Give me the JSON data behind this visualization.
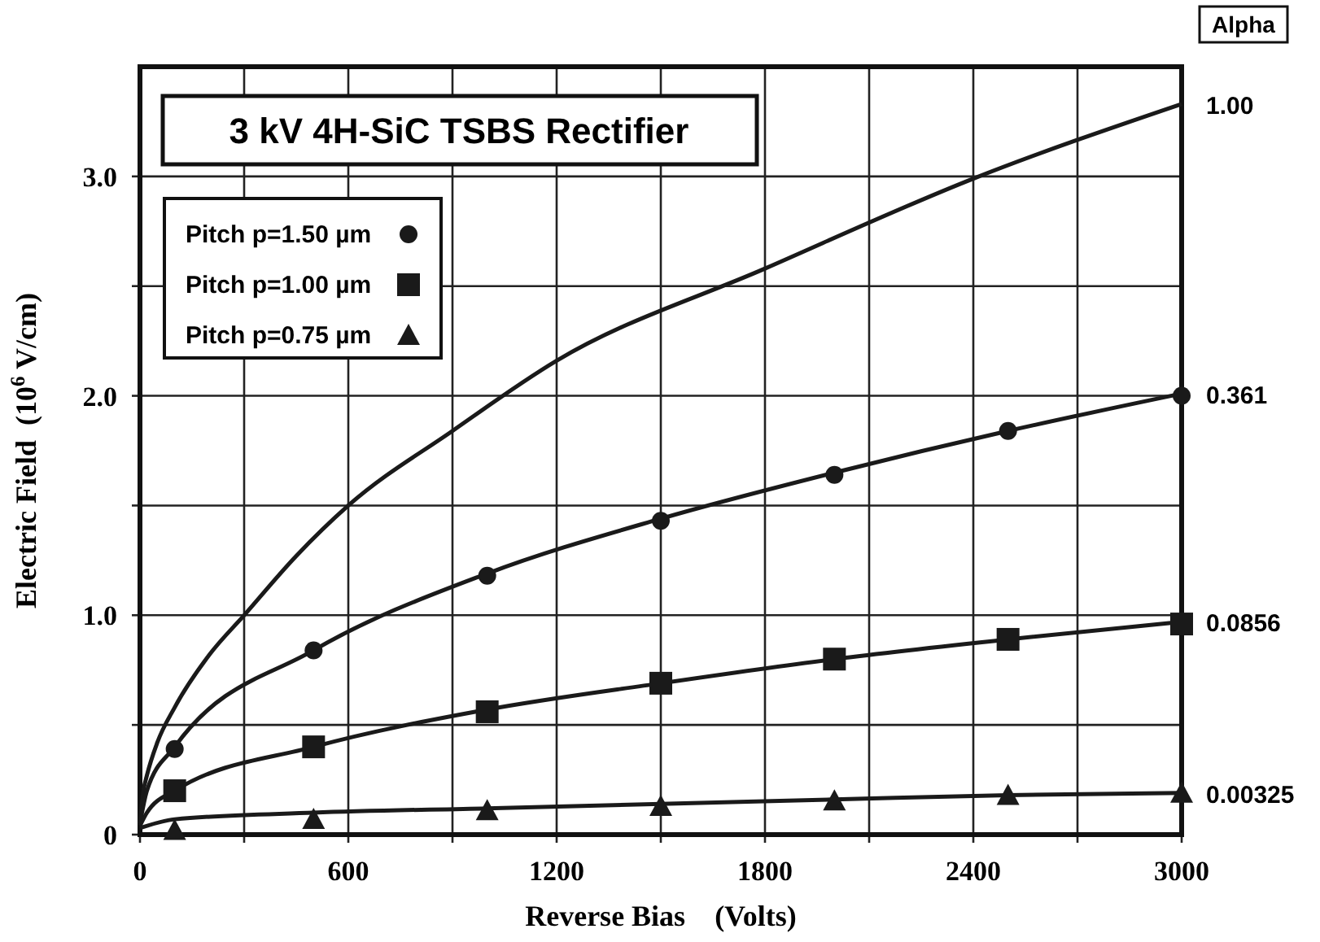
{
  "chart_data": {
    "type": "scatter",
    "title": "3 kV 4H-SiC TSBS Rectifier",
    "xlabel": "Reverse Bias    (Volts)",
    "ylabel": "Electric Field  (10$^{6}$ V/cm)",
    "legend_title": "Alpha",
    "xlim": [
      0,
      3000
    ],
    "ylim": [
      0,
      3.5
    ],
    "xticks": [
      0,
      {
        "value": 300,
        "label": null
      },
      600,
      {
        "value": 900,
        "label": null
      },
      1200,
      {
        "value": 1500,
        "label": null
      },
      1800,
      {
        "value": 2100,
        "label": null
      },
      2400,
      {
        "value": 2700,
        "label": null
      },
      3000
    ],
    "yticks": [
      0,
      {
        "value": 0.5,
        "label": null
      },
      {
        "value": 1,
        "label": "1.0"
      },
      {
        "value": 1.5,
        "label": null
      },
      {
        "value": 2,
        "label": "2.0"
      },
      {
        "value": 2.5,
        "label": null
      },
      {
        "value": 3,
        "label": "3.0"
      }
    ],
    "grid": true,
    "legend": "top left",
    "series": [
      {
        "type": "line",
        "color": "#1a1a1a",
        "marker": "none",
        "x": [
          0,
          10,
          20,
          50,
          100,
          200,
          300,
          450,
          600,
          900,
          1200,
          1800,
          2400,
          3000
        ],
        "values": [
          0.05,
          0.2,
          0.27,
          0.42,
          0.58,
          0.82,
          1.0,
          1.27,
          1.5,
          1.84,
          2.16,
          2.58,
          2.99,
          3.33
        ]
      },
      {
        "type": "line",
        "color": "#1a1a1a",
        "marker": "none",
        "x": [
          0,
          20,
          100,
          500,
          1000,
          1500,
          2000,
          2500,
          3000
        ],
        "values": [
          0.05,
          0.2,
          0.4,
          0.84,
          1.19,
          1.44,
          1.65,
          1.84,
          2.01
        ]
      },
      {
        "type": "line",
        "color": "#1a1a1a",
        "marker": "none",
        "x": [
          0,
          20,
          100,
          500,
          1000,
          1500,
          2000,
          2500,
          3000
        ],
        "values": [
          0.04,
          0.1,
          0.2,
          0.4,
          0.57,
          0.69,
          0.8,
          0.89,
          0.97
        ]
      },
      {
        "type": "line",
        "color": "#1a1a1a",
        "marker": "none",
        "x": [
          0,
          100,
          500,
          1000,
          1500,
          2000,
          2500,
          3000
        ],
        "values": [
          0.03,
          0.07,
          0.1,
          0.12,
          0.14,
          0.16,
          0.18,
          0.19
        ]
      },
      {
        "name": "Pitch p=1.50 µm",
        "color": "#1a1a1a",
        "marker": "circle",
        "x": [
          100,
          500,
          1000,
          1500,
          2000,
          2500,
          3000
        ],
        "values": [
          0.39,
          0.84,
          1.18,
          1.43,
          1.64,
          1.84,
          2.0
        ]
      },
      {
        "name": "Pitch p=1.00 µm",
        "color": "#1a1a1a",
        "marker": "square",
        "x": [
          100,
          500,
          1000,
          1500,
          2000,
          2500,
          3000
        ],
        "values": [
          0.2,
          0.4,
          0.56,
          0.69,
          0.8,
          0.89,
          0.96
        ]
      },
      {
        "name": "Pitch p=0.75 µm",
        "color": "#1a1a1a",
        "marker": "triangle",
        "x": [
          100,
          500,
          1000,
          1500,
          2000,
          2500,
          3000
        ],
        "values": [
          0.02,
          0.07,
          0.11,
          0.13,
          0.155,
          0.18,
          0.19
        ]
      }
    ],
    "annotations": [
      "1.00",
      "0.361",
      "0.0856",
      "0.00325"
    ]
  }
}
